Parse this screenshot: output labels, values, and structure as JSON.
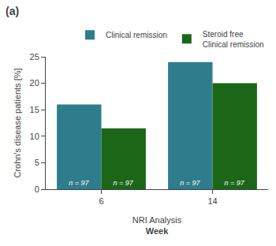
{
  "chart_data": {
    "type": "bar",
    "title": "(a)",
    "xlabel": "Week",
    "ylabel": "Crohn's disease patients [%]",
    "annotations": [
      "NRI Analysis"
    ],
    "categories": [
      "6",
      "14"
    ],
    "series": [
      {
        "name": "Clinical remission",
        "color": "#2e7d8c",
        "values": [
          16,
          24
        ],
        "n_labels": [
          "n = 97",
          "n = 97"
        ]
      },
      {
        "name": "Steroid free\nClinical remission",
        "color": "#1c6618",
        "values": [
          11.5,
          20
        ],
        "n_labels": [
          "n = 97",
          "n = 97"
        ]
      }
    ],
    "ylim": [
      0,
      25
    ],
    "yticks": [
      0,
      5,
      10,
      15,
      20,
      25
    ],
    "grid": false,
    "legend": "upper right"
  }
}
